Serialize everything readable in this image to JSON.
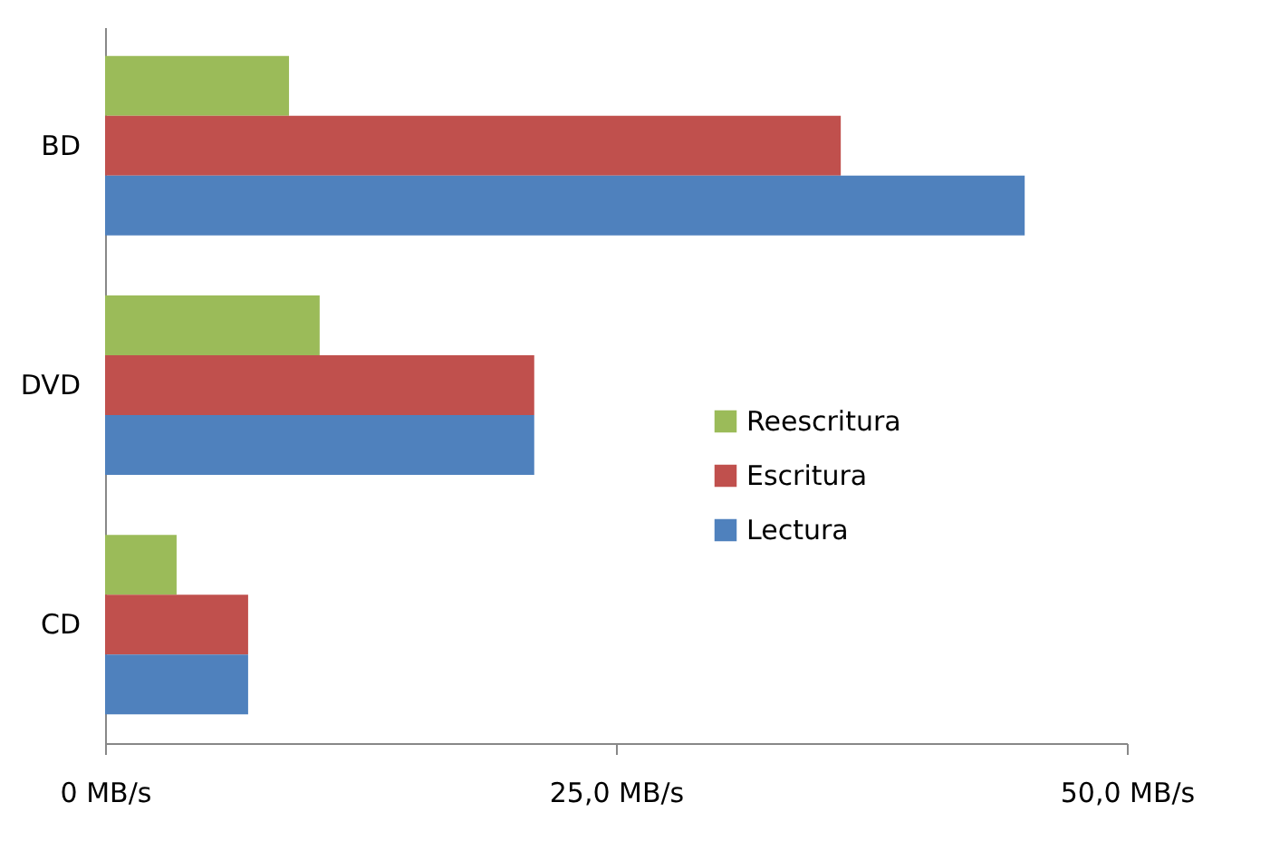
{
  "chart_data": {
    "type": "bar",
    "orientation": "horizontal",
    "categories": [
      "BD",
      "DVD",
      "CD"
    ],
    "series": [
      {
        "name": "Reescritura",
        "color": "#9bbb59",
        "values": [
          9,
          10.5,
          3.5
        ]
      },
      {
        "name": "Escritura",
        "color": "#c0504d",
        "values": [
          36,
          21,
          7
        ]
      },
      {
        "name": "Lectura",
        "color": "#4f81bd",
        "values": [
          45,
          21,
          7
        ]
      }
    ],
    "xlim": [
      0,
      50
    ],
    "xticks": [
      {
        "value": 0,
        "label": "0 MB/s"
      },
      {
        "value": 25,
        "label": "25,0 MB/s"
      },
      {
        "value": 50,
        "label": "50,0 MB/s"
      }
    ],
    "grid": false,
    "legend": "right"
  }
}
